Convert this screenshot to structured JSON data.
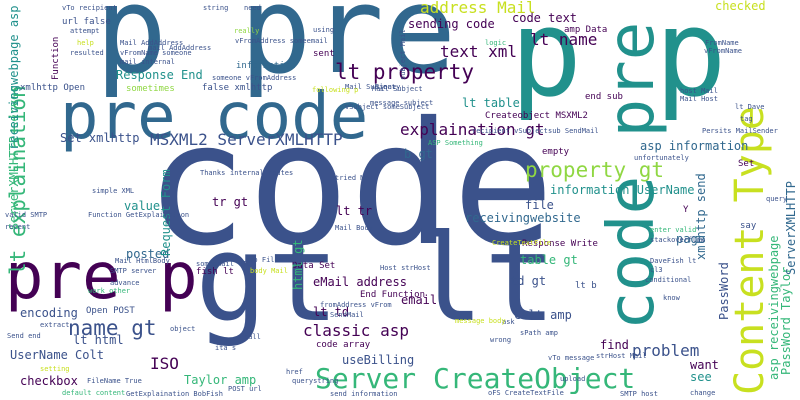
{
  "palette": {
    "dark_purple": "#440154",
    "indigo": "#3b528b",
    "blue": "#31688e",
    "teal": "#21918c",
    "green": "#35b779",
    "lime": "#90d743",
    "yellow": "#c8e020"
  },
  "words": {
    "code": "code",
    "gt_lt": "gt lt",
    "p_pre": "p pre",
    "p_p": "p p",
    "pre_code_1": "pre code",
    "pre_p": "pre p",
    "code_pre": "code pre",
    "content_type": "Content Type",
    "lt_property": "lt property",
    "server_createobject": "Server CreateObject",
    "msxml2": "MSXML2 ServerXMLHTTP",
    "explaination_gt": "explaination gt",
    "lt_explaination": "lt explaination",
    "property_gt": "property gt",
    "name_gt": "name gt",
    "lt_name": "lt name",
    "address_mail": "address Mail",
    "sending_code": "sending code",
    "text_xml": "text xml",
    "response_end": "Response End",
    "lt_table": "lt table",
    "asp_information": "asp information",
    "receivingwebsite": "receivingwebsite",
    "email_address": "eMail address",
    "classic_asp": "classic asp",
    "usebilling": "useBilling",
    "problem": "problem",
    "lt_html": "lt html",
    "iso": "ISO",
    "checkbox": "checkbox",
    "taylor_amp": "Taylor amp",
    "serverxmlhttp_server": "ServerXMLHTTP server",
    "content_text": "code text",
    "checked": "checked",
    "information_username": "information UserName",
    "amp_data": "amp Data",
    "set_xmlhttp": "Set xmlhttp",
    "b_gt": "b gt",
    "lt_tr": "lt tr",
    "tr_gt": "tr gt",
    "value": "value",
    "posted": "posted",
    "file": "file",
    "table_gt": "table gt",
    "page": "page",
    "see": "see",
    "want": "want",
    "find": "find",
    "email": "email",
    "td_gt": "td gt",
    "colt_amp": "Colt amp",
    "lt_td": "lt td",
    "data_set": "Data Set",
    "fish_lt": "fish lt",
    "encoding": "encoding",
    "open_post": "Open POST",
    "username_colt": "UserName Colt",
    "request_form": "Request Form",
    "xmlhttp_send": "xmlhttp send",
    "password": "PassWord",
    "lt_b": "lt b",
    "amp": "amp",
    "say": "say",
    "empty": "empty",
    "set": "Set",
    "sometimes": "sometimes",
    "information": "information",
    "sent": "sent",
    "xmlhttp_open": "xmlhttp Open",
    "false_xmlhttp": "false xmlhttp",
    "receivingwebpage_asp": "receivingwebpage asp",
    "asp_receivingwebpage": "asp receivingwebpage",
    "password_taylor": "PassWord Taylor",
    "serverxmlhttp": "ServerXMLHTTP",
    "y": "Y",
    "url_false": "url false",
    "code_array": "code array",
    "html_gt": "html gt",
    "createobject_msxml2": "Createobject MSXML2",
    "end_sub": "end sub",
    "response_write": "Response Write",
    "end_function": "End Function",
    "vto_recipient": "vTo recipient",
    "need": "need",
    "string": "string",
    "mail_subject": "Mail Subject",
    "vfromaddress": "vFromAddress someemail",
    "function": "Function",
    "using": "using",
    "binary": "Binary",
    "subject_mail": "subject Mail",
    "small_words": [
      "logic",
      "really",
      "help",
      "attempt",
      "resulted",
      "Mail AddAddress",
      "vFromName someone",
      "mail internal",
      "someone vFromAddress",
      "following p",
      "message subject",
      "sub SendMail",
      "Mail Host",
      "ASP Something",
      "recipient vSubject",
      "vSubject someSubject",
      "Mail Subject",
      "tried Mail",
      "Mail Body",
      "internal routes",
      "body Mail",
      "amp FileName",
      "someemail vTo",
      "fromAddress vFrom",
      "Host strHost",
      "cl3",
      "conditional",
      "know",
      "ask",
      "wrong",
      "SendMail",
      "sPath amp",
      "DaveFish lt",
      "enter valid",
      "query",
      "tag",
      "Persits MailSender",
      "host Mail",
      "lt Dave",
      "unfortunately",
      "FromName",
      "message body",
      "CreateTextFile",
      "oFS CreateTextFile",
      "change",
      "SMTP host",
      "querystring",
      "href",
      "itâ s",
      "call",
      "object",
      "extract",
      "Send end",
      "setting",
      "default content",
      "FileName True",
      "POST url",
      "send information",
      "SMTP server",
      "valid SMTP",
      "recent",
      "simple XML",
      "Thanks",
      "advance",
      "work other",
      "Mail HtmlBody",
      "GetExplaination BobFish",
      "mail AddAddress",
      "vFromName",
      "upload",
      "strHost Mail",
      "vTo message",
      "Function GetExplaination",
      "stackoverflow"
    ]
  }
}
